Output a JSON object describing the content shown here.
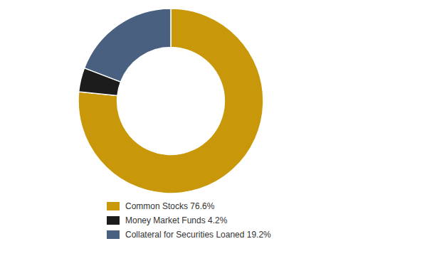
{
  "chart_data": {
    "type": "pie",
    "categories": [
      "Common Stocks 76.6%",
      "Money Market Funds 4.2%",
      "Collateral for Securities Loaned 19.2%"
    ],
    "values": [
      76.6,
      4.2,
      19.2
    ],
    "colors": [
      "#c9980a",
      "#1c1c1c",
      "#4a6080"
    ],
    "legend": "bottom"
  }
}
